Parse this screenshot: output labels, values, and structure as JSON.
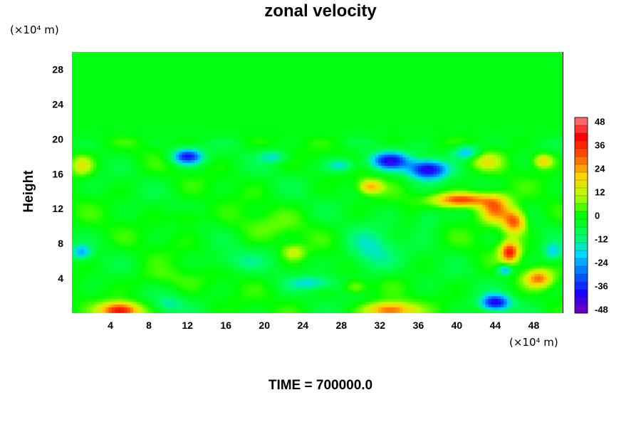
{
  "chart_data": {
    "type": "heatmap",
    "title": "zonal velocity",
    "ylabel": "Height",
    "y_unit": "(×10⁴ m)",
    "x_unit": "(×10⁴ m)",
    "caption": "TIME = 700000.0",
    "xlim": [
      0,
      51
    ],
    "ylim": [
      0,
      30
    ],
    "x_ticks": [
      "4",
      "8",
      "12",
      "16",
      "20",
      "24",
      "28",
      "32",
      "36",
      "40",
      "44",
      "48"
    ],
    "y_ticks": [
      "4",
      "8",
      "12",
      "16",
      "20",
      "24",
      "28"
    ],
    "colorbar": {
      "min": -50,
      "max": 50,
      "step": 4,
      "tick_labels": [
        "48",
        "36",
        "24",
        "12",
        "0",
        "-12",
        "-24",
        "-36",
        "-48"
      ],
      "colors_low_to_high": [
        "#7a00b8",
        "#1a00ff",
        "#0066ff",
        "#00d8ff",
        "#00ff60",
        "#00ff00",
        "#b8ff00",
        "#ffd400",
        "#ff5a00",
        "#ff0000",
        "#ff8080"
      ]
    },
    "features": [
      {
        "region": "upper layer above 21",
        "value": -2
      },
      {
        "region": "jet near x 40-47, y 10-14",
        "value": 36
      },
      {
        "region": "x 45-46, y 6-8",
        "value": 38
      },
      {
        "region": "x 4-6, y 0-1",
        "value": 42
      },
      {
        "region": "x 32-34, y 0-1",
        "value": 34
      },
      {
        "region": "x 36-38, y 15-17",
        "value": -40
      },
      {
        "region": "x 11-14, y 17-19",
        "value": -36
      },
      {
        "region": "x 44-46, y 0-2",
        "value": -38
      }
    ]
  }
}
